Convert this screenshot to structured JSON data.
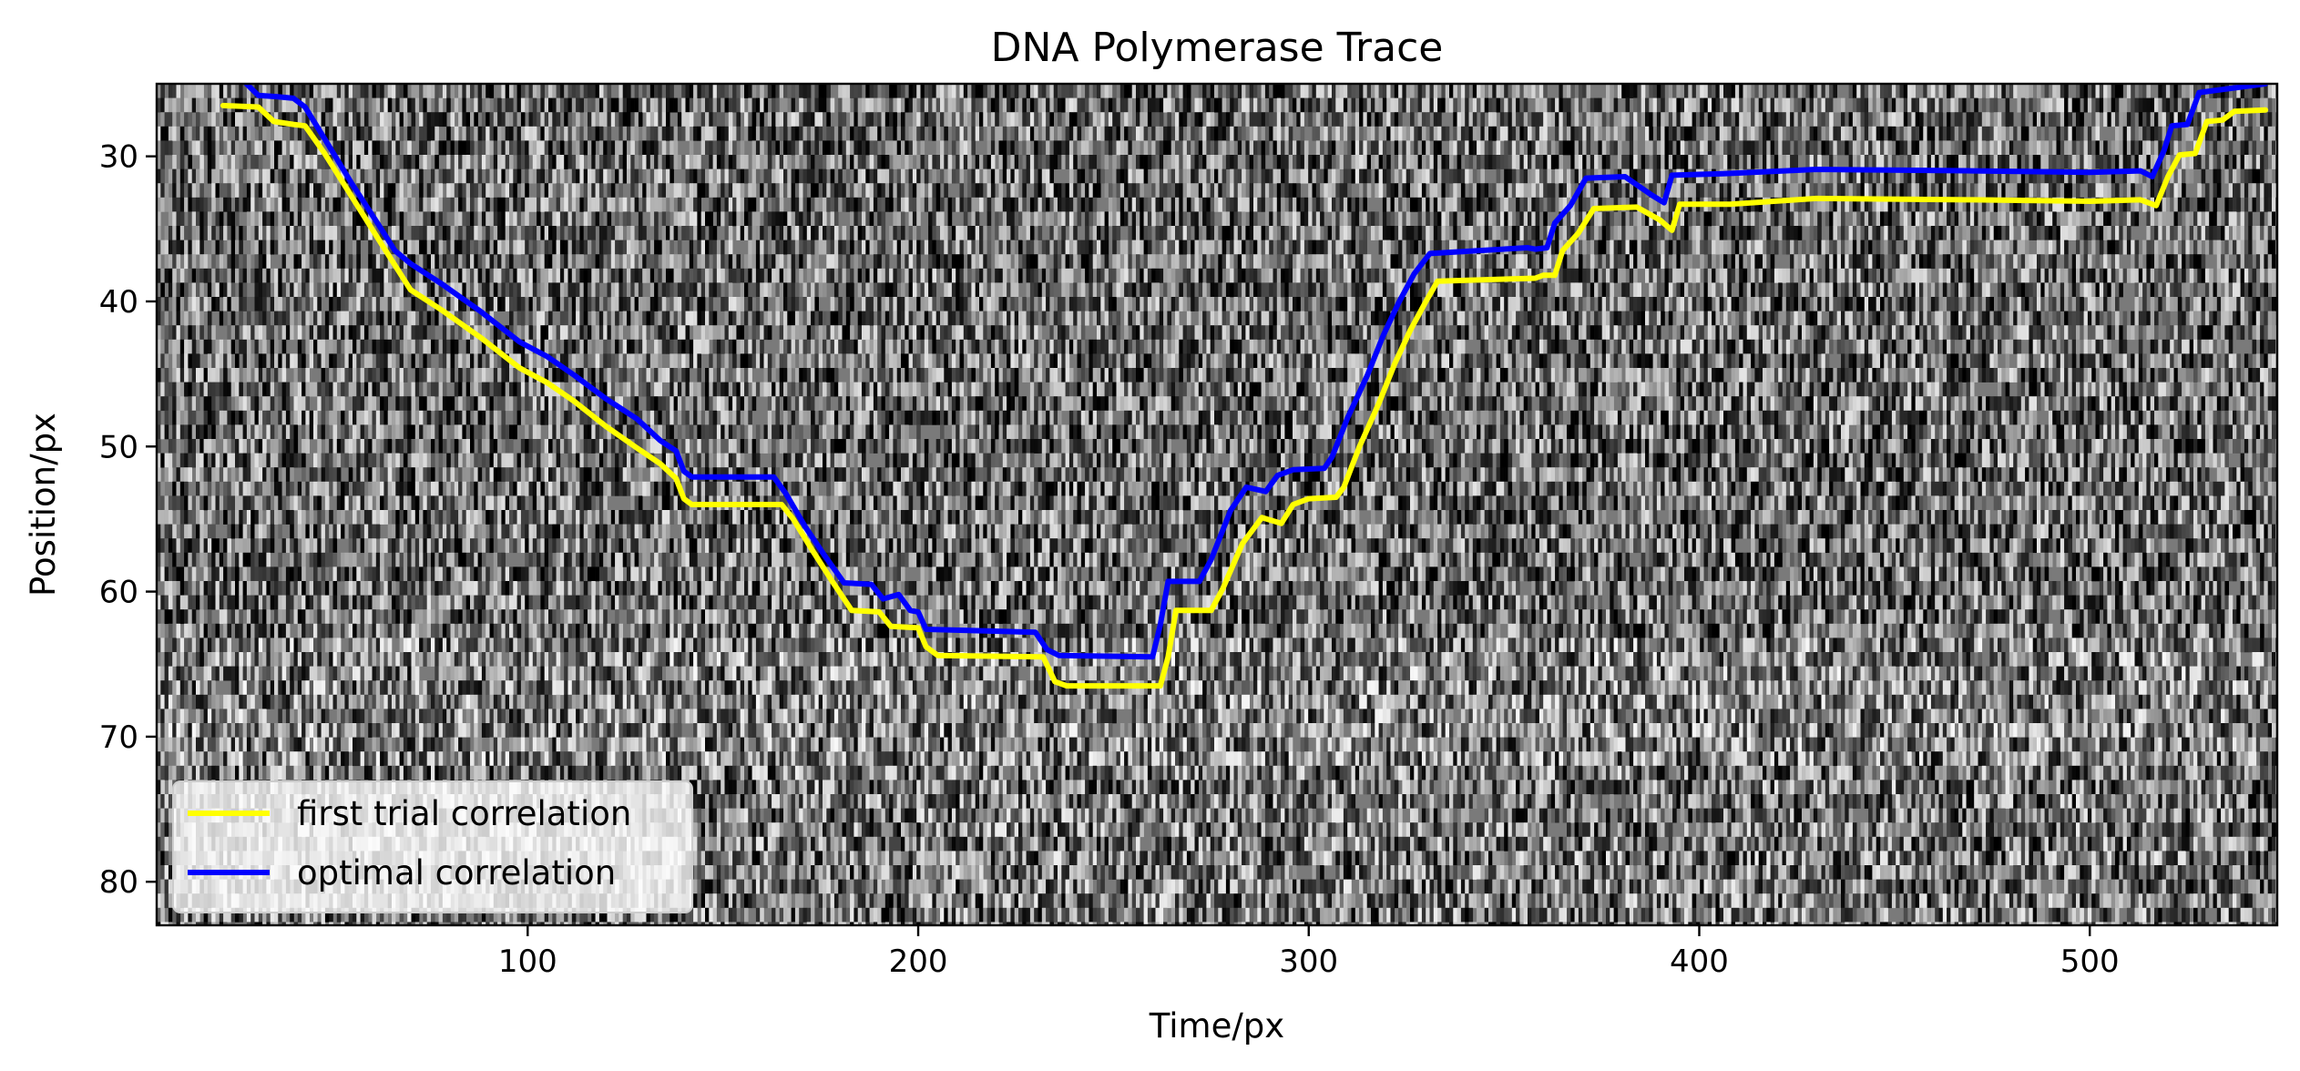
{
  "chart_data": {
    "type": "line",
    "title": "DNA Polymerase Trace",
    "xlabel": "Time/px",
    "ylabel": "Position/px",
    "xlim": [
      5,
      548
    ],
    "ylim": [
      83,
      25
    ],
    "y_inverted": true,
    "xticks": [
      100,
      200,
      300,
      400,
      500
    ],
    "yticks": [
      30,
      40,
      50,
      60,
      70,
      80
    ],
    "background": "grayscale kymograph image",
    "grid": false,
    "legend_position": "lower-left",
    "series": [
      {
        "name": "first trial correlation",
        "color": "#ffff00",
        "points": [
          [
            22,
            26.5
          ],
          [
            31,
            26.6
          ],
          [
            35,
            27.6
          ],
          [
            40,
            27.8
          ],
          [
            43,
            27.9
          ],
          [
            48,
            29.8
          ],
          [
            55,
            32.8
          ],
          [
            62,
            35.8
          ],
          [
            66,
            37.5
          ],
          [
            70,
            39.2
          ],
          [
            78,
            40.6
          ],
          [
            88,
            42.5
          ],
          [
            98,
            44.6
          ],
          [
            105,
            45.6
          ],
          [
            112,
            46.9
          ],
          [
            120,
            48.6
          ],
          [
            128,
            50.1
          ],
          [
            134,
            51.2
          ],
          [
            138,
            52.2
          ],
          [
            140,
            53.6
          ],
          [
            142,
            54.0
          ],
          [
            165,
            54.0
          ],
          [
            168,
            55.0
          ],
          [
            173,
            57.2
          ],
          [
            178,
            59.3
          ],
          [
            183,
            61.3
          ],
          [
            190,
            61.4
          ],
          [
            193,
            62.4
          ],
          [
            200,
            62.5
          ],
          [
            202,
            63.8
          ],
          [
            205,
            64.4
          ],
          [
            232,
            64.5
          ],
          [
            235,
            66.2
          ],
          [
            238,
            66.5
          ],
          [
            262,
            66.5
          ],
          [
            264,
            64.5
          ],
          [
            266,
            61.3
          ],
          [
            275,
            61.3
          ],
          [
            278,
            59.8
          ],
          [
            283,
            56.7
          ],
          [
            288,
            54.9
          ],
          [
            293,
            55.3
          ],
          [
            296,
            54.0
          ],
          [
            300,
            53.6
          ],
          [
            307,
            53.5
          ],
          [
            309,
            52.8
          ],
          [
            313,
            50.0
          ],
          [
            318,
            47.0
          ],
          [
            322,
            44.3
          ],
          [
            326,
            42.0
          ],
          [
            330,
            40.0
          ],
          [
            333,
            38.6
          ],
          [
            358,
            38.4
          ],
          [
            360,
            38.2
          ],
          [
            363,
            38.2
          ],
          [
            365,
            36.5
          ],
          [
            369,
            35.3
          ],
          [
            373,
            33.6
          ],
          [
            384,
            33.5
          ],
          [
            390,
            34.4
          ],
          [
            393,
            35.1
          ],
          [
            395,
            33.3
          ],
          [
            408,
            33.3
          ],
          [
            430,
            32.9
          ],
          [
            470,
            33.0
          ],
          [
            500,
            33.1
          ],
          [
            513,
            33.0
          ],
          [
            517,
            33.4
          ],
          [
            520,
            31.4
          ],
          [
            523,
            29.9
          ],
          [
            527,
            29.8
          ],
          [
            530,
            27.6
          ],
          [
            534,
            27.5
          ],
          [
            537,
            26.9
          ],
          [
            545,
            26.8
          ]
        ]
      },
      {
        "name": "optimal correlation",
        "color": "#0000ff",
        "points": [
          [
            28,
            25.0
          ],
          [
            31,
            25.8
          ],
          [
            36,
            25.9
          ],
          [
            40,
            26.0
          ],
          [
            43,
            26.6
          ],
          [
            48,
            28.8
          ],
          [
            55,
            31.9
          ],
          [
            62,
            34.8
          ],
          [
            66,
            36.5
          ],
          [
            70,
            37.4
          ],
          [
            78,
            38.8
          ],
          [
            88,
            40.7
          ],
          [
            98,
            42.8
          ],
          [
            105,
            43.8
          ],
          [
            112,
            45.1
          ],
          [
            120,
            46.7
          ],
          [
            128,
            48.1
          ],
          [
            134,
            49.6
          ],
          [
            138,
            50.3
          ],
          [
            140,
            51.7
          ],
          [
            142,
            52.1
          ],
          [
            163,
            52.1
          ],
          [
            166,
            53.2
          ],
          [
            171,
            55.5
          ],
          [
            176,
            57.5
          ],
          [
            181,
            59.4
          ],
          [
            188,
            59.5
          ],
          [
            191,
            60.5
          ],
          [
            195,
            60.2
          ],
          [
            198,
            61.3
          ],
          [
            200,
            61.4
          ],
          [
            202,
            62.6
          ],
          [
            230,
            62.8
          ],
          [
            233,
            64.0
          ],
          [
            236,
            64.4
          ],
          [
            260,
            64.5
          ],
          [
            262,
            62.3
          ],
          [
            264,
            59.3
          ],
          [
            272,
            59.3
          ],
          [
            275,
            57.8
          ],
          [
            280,
            54.4
          ],
          [
            284,
            52.8
          ],
          [
            289,
            53.1
          ],
          [
            292,
            52.0
          ],
          [
            296,
            51.6
          ],
          [
            304,
            51.5
          ],
          [
            306,
            50.7
          ],
          [
            310,
            48.0
          ],
          [
            315,
            45.1
          ],
          [
            319,
            42.4
          ],
          [
            323,
            40.1
          ],
          [
            327,
            38.1
          ],
          [
            331,
            36.7
          ],
          [
            356,
            36.3
          ],
          [
            358,
            36.4
          ],
          [
            361,
            36.3
          ],
          [
            363,
            34.6
          ],
          [
            367,
            33.4
          ],
          [
            371,
            31.5
          ],
          [
            381,
            31.4
          ],
          [
            388,
            32.7
          ],
          [
            391,
            33.2
          ],
          [
            393,
            31.3
          ],
          [
            406,
            31.2
          ],
          [
            430,
            30.9
          ],
          [
            470,
            31.0
          ],
          [
            500,
            31.1
          ],
          [
            513,
            31.0
          ],
          [
            516,
            31.4
          ],
          [
            519,
            29.6
          ],
          [
            521,
            27.9
          ],
          [
            525,
            27.8
          ],
          [
            528,
            25.6
          ],
          [
            545,
            25.0
          ]
        ]
      }
    ]
  }
}
